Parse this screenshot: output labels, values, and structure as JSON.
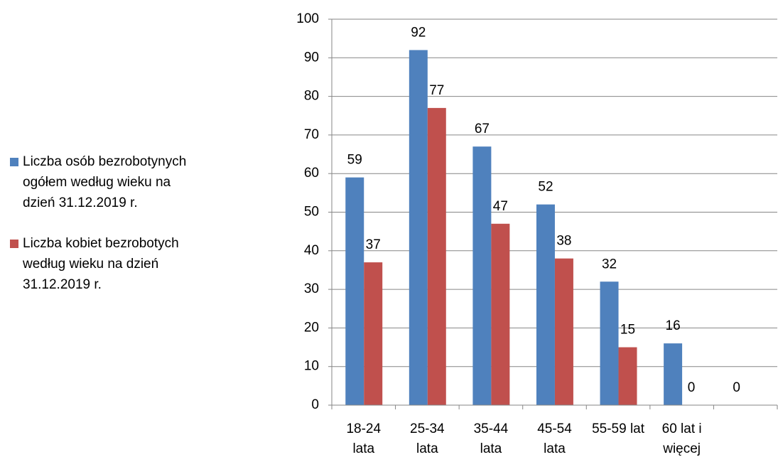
{
  "chart_data": {
    "type": "bar",
    "categories": [
      "18-24 lata",
      "25-34 lata",
      "35-44 lata",
      "45-54 lata",
      "55-59 lat",
      "60 lat i więcej",
      null
    ],
    "series": [
      {
        "name": "Liczba osób bezrobotynych ogółem według wieku na dzień 31.12.2019 r.",
        "color": "#4f81bd",
        "values": [
          59,
          92,
          67,
          52,
          32,
          16,
          0
        ]
      },
      {
        "name": "Liczba kobiet bezrobotych według wieku na dzień 31.12.2019 r.",
        "color": "#c0504d",
        "values": [
          37,
          77,
          47,
          38,
          15,
          0,
          null
        ]
      }
    ],
    "ylim": [
      0,
      100
    ],
    "yticks": [
      0,
      10,
      20,
      30,
      40,
      50,
      60,
      70,
      80,
      90,
      100
    ],
    "grid": true,
    "legend": "left"
  }
}
